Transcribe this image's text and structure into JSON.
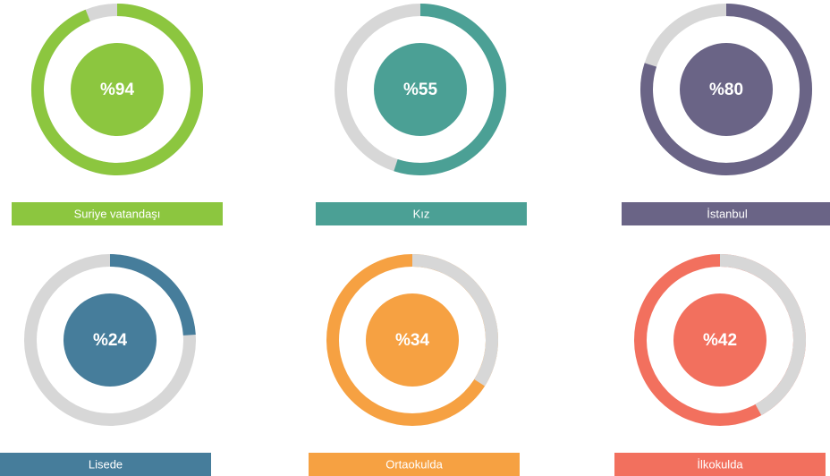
{
  "chart_data": [
    {
      "type": "gauge",
      "label": "Suriye vatandaşı",
      "value": 94,
      "value_label": "%94",
      "color": "#8cc63f",
      "arc": "value"
    },
    {
      "type": "gauge",
      "label": "Kız",
      "value": 55,
      "value_label": "%55",
      "color": "#4ba095",
      "arc": "value"
    },
    {
      "type": "gauge",
      "label": "İstanbul",
      "value": 80,
      "value_label": "%80",
      "color": "#6a6486",
      "arc": "value"
    },
    {
      "type": "gauge",
      "label": "Lisede",
      "value": 24,
      "value_label": "%24",
      "color": "#467d9b",
      "arc": "value"
    },
    {
      "type": "gauge",
      "label": "Ortaokulda",
      "value": 34,
      "value_label": "%34",
      "color": "#f6a142",
      "arc": "remainder"
    },
    {
      "type": "gauge",
      "label": "İlkokulda",
      "value": 42,
      "value_label": "%42",
      "color": "#f2705e",
      "arc": "remainder"
    }
  ]
}
